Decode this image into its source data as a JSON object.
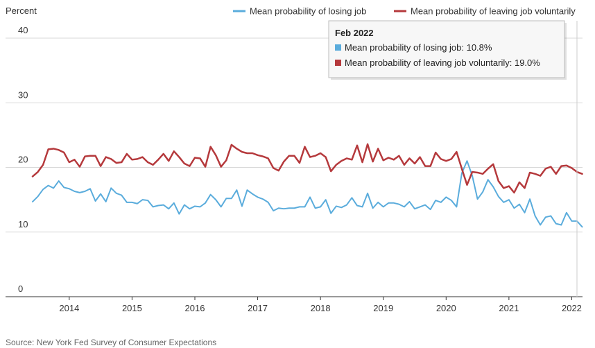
{
  "chart_data": {
    "type": "line",
    "ylabel": "Percent",
    "ylim": [
      0,
      40
    ],
    "yticks": [
      0,
      10,
      20,
      30,
      40
    ],
    "xlim": [
      "2013-06",
      "2022-02"
    ],
    "xticks": [
      "2014",
      "2015",
      "2016",
      "2017",
      "2018",
      "2019",
      "2020",
      "2021",
      "2022"
    ],
    "grid": "horizontal",
    "legend_position": "top-right",
    "series": [
      {
        "name": "Mean probability of losing job",
        "color": "#5aacdc",
        "start": "2013-06",
        "frequency": "monthly",
        "values": [
          14.7,
          15.5,
          16.6,
          17.2,
          16.8,
          17.9,
          16.9,
          16.7,
          16.3,
          16.1,
          16.3,
          16.7,
          14.8,
          15.9,
          14.7,
          16.8,
          16.0,
          15.7,
          14.6,
          14.6,
          14.4,
          15.0,
          14.9,
          13.9,
          14.1,
          14.2,
          13.6,
          14.5,
          12.8,
          14.2,
          13.6,
          14.0,
          13.9,
          14.5,
          15.8,
          15.0,
          13.9,
          15.2,
          15.2,
          16.5,
          14.0,
          16.5,
          15.9,
          15.4,
          15.1,
          14.6,
          13.3,
          13.7,
          13.6,
          13.7,
          13.7,
          13.9,
          13.9,
          15.4,
          13.7,
          13.9,
          15.0,
          12.9,
          14.0,
          13.8,
          14.2,
          15.3,
          14.1,
          13.9,
          16.0,
          13.7,
          14.6,
          13.9,
          14.5,
          14.5,
          14.3,
          13.9,
          14.7,
          13.6,
          13.9,
          14.2,
          13.5,
          14.9,
          14.6,
          15.4,
          14.9,
          13.9,
          19.1,
          21.0,
          18.7,
          15.1,
          16.2,
          18.1,
          17.0,
          15.5,
          14.6,
          15.0,
          13.7,
          14.3,
          13.0,
          15.1,
          12.5,
          11.1,
          12.3,
          12.5,
          11.3,
          11.1,
          13.0,
          11.7,
          11.7,
          10.8
        ]
      },
      {
        "name": "Mean probability of leaving job voluntarily",
        "color": "#b5393c",
        "start": "2013-06",
        "frequency": "monthly",
        "values": [
          18.6,
          19.3,
          20.4,
          22.8,
          22.9,
          22.7,
          22.3,
          20.8,
          21.2,
          20.1,
          21.7,
          21.8,
          21.8,
          20.2,
          21.6,
          21.3,
          20.7,
          20.8,
          22.1,
          21.2,
          21.3,
          21.6,
          20.8,
          20.4,
          21.2,
          22.1,
          21.0,
          22.5,
          21.6,
          20.6,
          20.2,
          21.5,
          21.4,
          20.1,
          23.2,
          21.9,
          20.1,
          21.1,
          23.5,
          22.9,
          22.4,
          22.2,
          22.2,
          21.9,
          21.7,
          21.4,
          19.9,
          19.5,
          20.9,
          21.8,
          21.8,
          20.7,
          23.2,
          21.6,
          21.8,
          22.2,
          21.6,
          19.4,
          20.4,
          21.0,
          21.4,
          21.2,
          23.4,
          20.8,
          23.6,
          20.9,
          22.9,
          21.1,
          21.5,
          21.2,
          21.8,
          20.4,
          21.4,
          20.6,
          21.6,
          20.2,
          20.2,
          22.3,
          21.3,
          21.0,
          21.3,
          22.4,
          19.8,
          17.3,
          19.3,
          19.2,
          19.0,
          19.8,
          20.5,
          17.9,
          16.8,
          17.1,
          16.1,
          17.7,
          16.8,
          19.2,
          19.0,
          18.7,
          19.8,
          20.1,
          19.0,
          20.2,
          20.3,
          19.9,
          19.3,
          19.0
        ]
      }
    ],
    "tooltip": {
      "title": "Feb 2022",
      "lines": [
        {
          "text": "Mean probability of losing job: 10.8%",
          "color": "#5aacdc"
        },
        {
          "text": "Mean probability of leaving job voluntarily: 19.0%",
          "color": "#b5393c"
        }
      ]
    },
    "source": "Source: New York Fed Survey of Consumer Expectations"
  }
}
